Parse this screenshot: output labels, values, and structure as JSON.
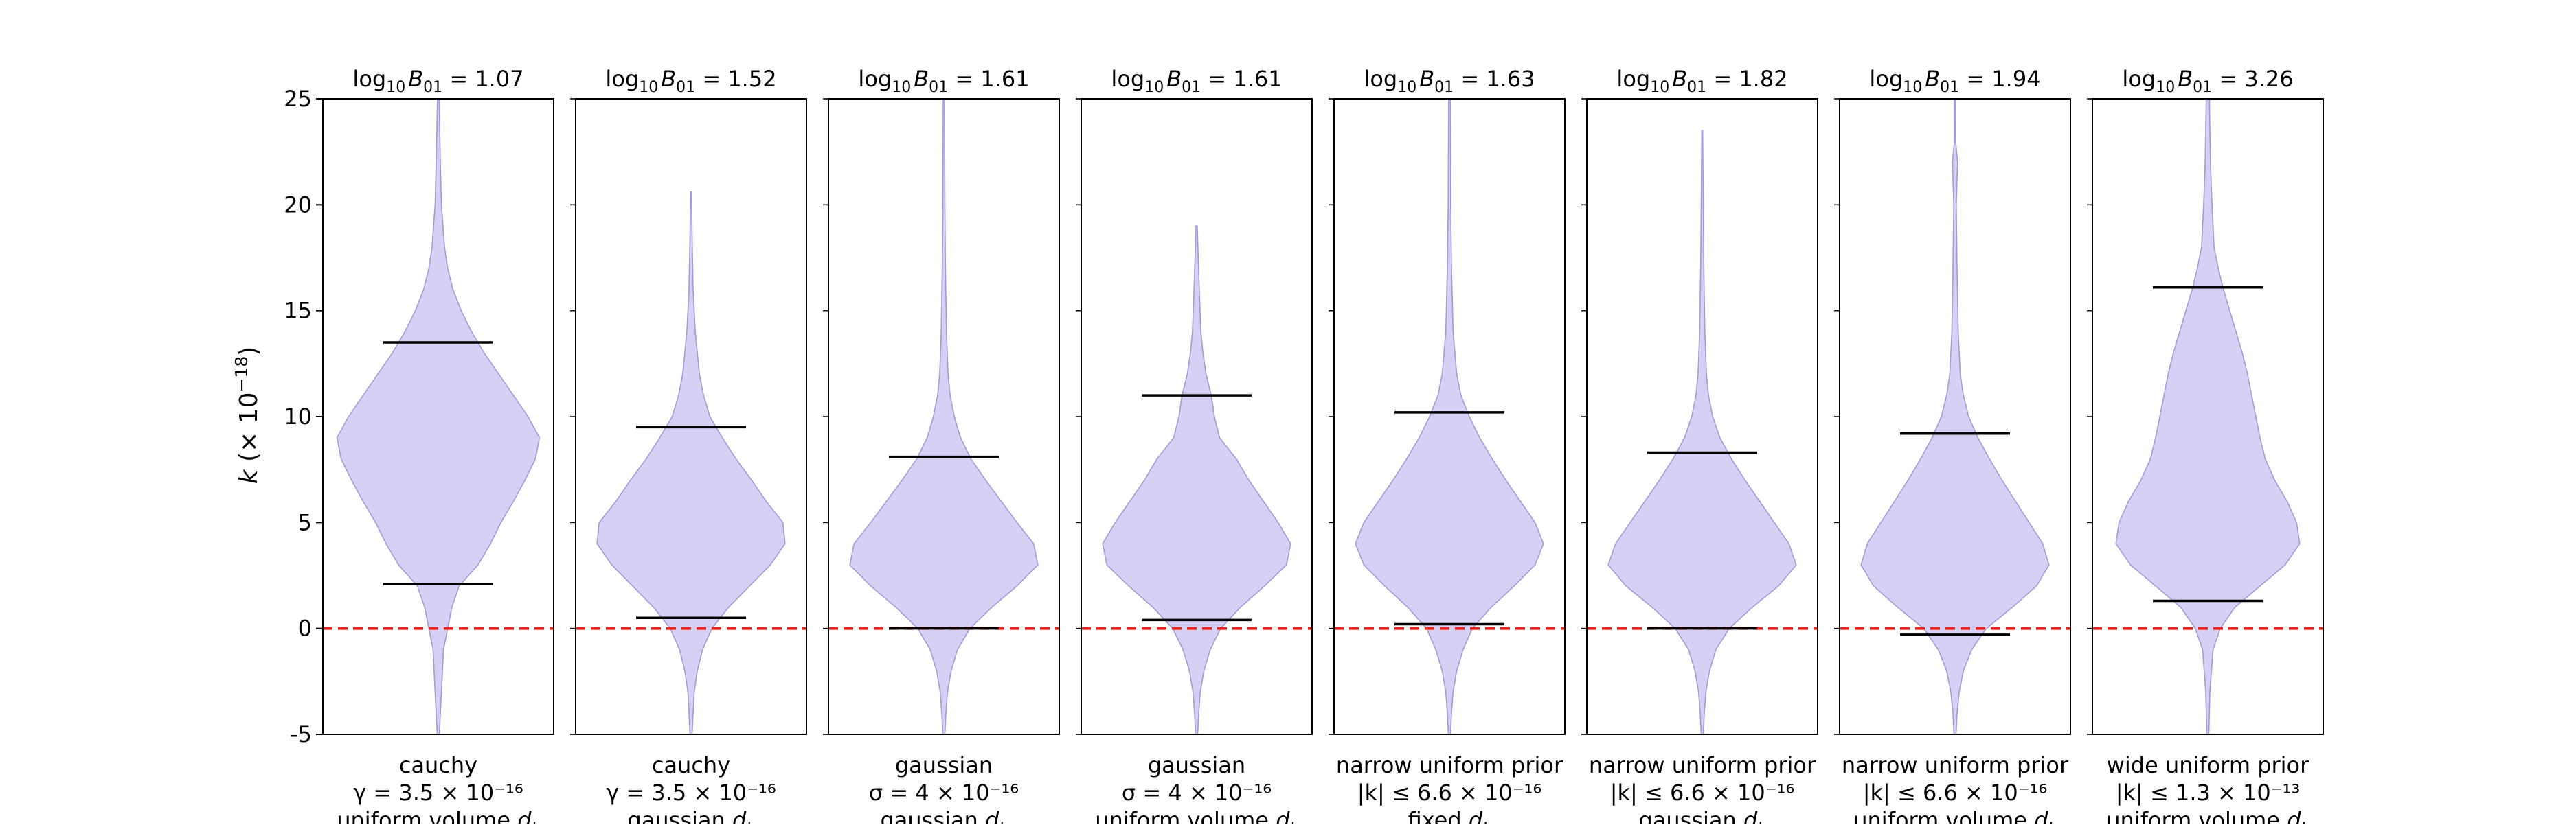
{
  "chart_data": {
    "type": "violin",
    "ylabel": "k (× 10⁻¹⁸)",
    "ylabel_parts": {
      "var": "k",
      "prefix": "(× 10",
      "exp": "−18",
      "suffix": ")"
    },
    "ylim": [
      -5,
      25
    ],
    "yticks": [
      -5,
      0,
      5,
      10,
      15,
      20,
      25
    ],
    "reference_line": {
      "y": 0,
      "color": "#e8221c",
      "style": "dashed"
    },
    "violin_color": "#d6d0f5",
    "violin_edge": "#a49ad8",
    "grid": false,
    "panels": [
      {
        "title": {
          "base": "log",
          "sub": "10",
          "var": "B",
          "varsub": "01",
          "value": " = 1.07"
        },
        "xlabel": [
          "cauchy",
          "γ = 3.5 × 10⁻¹⁶",
          "uniform volume d_L"
        ],
        "lower": 2.1,
        "upper": 13.5,
        "profile": [
          [
            -5,
            0.1
          ],
          [
            -3,
            0.3
          ],
          [
            -1,
            0.5
          ],
          [
            0,
            0.9
          ],
          [
            1,
            1.3
          ],
          [
            2,
            2.0
          ],
          [
            3,
            3.8
          ],
          [
            4,
            5.0
          ],
          [
            5,
            6.0
          ],
          [
            6,
            7.2
          ],
          [
            7,
            8.3
          ],
          [
            8,
            9.3
          ],
          [
            9,
            9.7
          ],
          [
            10,
            8.6
          ],
          [
            11,
            7.2
          ],
          [
            12,
            5.8
          ],
          [
            13,
            4.4
          ],
          [
            14,
            3.2
          ],
          [
            15,
            2.2
          ],
          [
            16,
            1.4
          ],
          [
            17,
            0.9
          ],
          [
            18,
            0.6
          ],
          [
            20,
            0.3
          ],
          [
            22,
            0.2
          ],
          [
            25,
            0.08
          ]
        ]
      },
      {
        "title": {
          "base": "log",
          "sub": "10",
          "var": "B",
          "varsub": "01",
          "value": " = 1.52"
        },
        "xlabel": [
          "cauchy",
          "γ = 3.5 × 10⁻¹⁶",
          "gaussian d_L"
        ],
        "lower": 0.5,
        "upper": 9.5,
        "profile": [
          [
            -5,
            0.1
          ],
          [
            -4,
            0.2
          ],
          [
            -3,
            0.3
          ],
          [
            -2,
            0.6
          ],
          [
            -1,
            1.1
          ],
          [
            0,
            2.0
          ],
          [
            1,
            3.6
          ],
          [
            2,
            5.6
          ],
          [
            3,
            7.6
          ],
          [
            4,
            9.0
          ],
          [
            5,
            8.8
          ],
          [
            6,
            7.2
          ],
          [
            7,
            5.8
          ],
          [
            8,
            4.3
          ],
          [
            9,
            3.0
          ],
          [
            10,
            1.8
          ],
          [
            11,
            1.2
          ],
          [
            12,
            0.8
          ],
          [
            14,
            0.4
          ],
          [
            16,
            0.2
          ],
          [
            18,
            0.12
          ],
          [
            20.6,
            0.04
          ]
        ]
      },
      {
        "title": {
          "base": "log",
          "sub": "10",
          "var": "B",
          "varsub": "01",
          "value": " = 1.61"
        },
        "xlabel": [
          "gaussian",
          "σ = 4 × 10⁻¹⁶",
          "gaussian d_L"
        ],
        "lower": 0.0,
        "upper": 8.1,
        "profile": [
          [
            -5,
            0.1
          ],
          [
            -4,
            0.2
          ],
          [
            -3,
            0.35
          ],
          [
            -2,
            0.7
          ],
          [
            -1,
            1.3
          ],
          [
            0,
            2.5
          ],
          [
            1,
            4.6
          ],
          [
            2,
            7.0
          ],
          [
            3,
            9.0
          ],
          [
            4,
            8.6
          ],
          [
            5,
            7.0
          ],
          [
            6,
            5.5
          ],
          [
            7,
            4.0
          ],
          [
            8,
            2.6
          ],
          [
            9,
            1.6
          ],
          [
            10,
            1.0
          ],
          [
            11,
            0.6
          ],
          [
            12,
            0.4
          ],
          [
            14,
            0.25
          ],
          [
            17,
            0.15
          ],
          [
            20,
            0.1
          ],
          [
            25,
            0.06
          ]
        ]
      },
      {
        "title": {
          "base": "log",
          "sub": "10",
          "var": "B",
          "varsub": "01",
          "value": " = 1.61"
        },
        "xlabel": [
          "gaussian",
          "σ = 4 × 10⁻¹⁶",
          "uniform volume d_L"
        ],
        "lower": 0.4,
        "upper": 11.0,
        "profile": [
          [
            -5,
            0.1
          ],
          [
            -4,
            0.2
          ],
          [
            -3,
            0.35
          ],
          [
            -2,
            0.7
          ],
          [
            -1,
            1.3
          ],
          [
            0,
            2.3
          ],
          [
            1,
            4.2
          ],
          [
            2,
            6.5
          ],
          [
            3,
            8.6
          ],
          [
            4,
            9.0
          ],
          [
            5,
            7.8
          ],
          [
            6,
            6.4
          ],
          [
            7,
            5.0
          ],
          [
            8,
            3.8
          ],
          [
            9,
            2.2
          ],
          [
            10,
            1.7
          ],
          [
            11,
            1.4
          ],
          [
            12,
            0.9
          ],
          [
            13,
            0.6
          ],
          [
            14,
            0.4
          ],
          [
            16,
            0.25
          ],
          [
            18,
            0.12
          ],
          [
            19,
            0.06
          ]
        ]
      },
      {
        "title": {
          "base": "log",
          "sub": "10",
          "var": "B",
          "varsub": "01",
          "value": " = 1.63"
        },
        "xlabel": [
          "narrow uniform prior",
          "|k| ≤ 6.6 × 10⁻¹⁶",
          "fixed d_L"
        ],
        "lower": 0.2,
        "upper": 10.2,
        "profile": [
          [
            -5,
            0.1
          ],
          [
            -4,
            0.2
          ],
          [
            -3,
            0.35
          ],
          [
            -2,
            0.7
          ],
          [
            -1,
            1.3
          ],
          [
            0,
            2.2
          ],
          [
            1,
            4.0
          ],
          [
            2,
            6.2
          ],
          [
            3,
            8.2
          ],
          [
            4,
            9.0
          ],
          [
            5,
            8.2
          ],
          [
            6,
            6.8
          ],
          [
            7,
            5.4
          ],
          [
            8,
            4.1
          ],
          [
            9,
            2.9
          ],
          [
            10,
            1.9
          ],
          [
            11,
            1.1
          ],
          [
            12,
            0.7
          ],
          [
            14,
            0.35
          ],
          [
            17,
            0.2
          ],
          [
            20,
            0.12
          ],
          [
            25,
            0.08
          ]
        ]
      },
      {
        "title": {
          "base": "log",
          "sub": "10",
          "var": "B",
          "varsub": "01",
          "value": " = 1.82"
        },
        "xlabel": [
          "narrow uniform prior",
          "|k| ≤ 6.6 × 10⁻¹⁶",
          "gaussian d_L"
        ],
        "lower": 0.0,
        "upper": 8.3,
        "profile": [
          [
            -5,
            0.1
          ],
          [
            -4,
            0.2
          ],
          [
            -3,
            0.35
          ],
          [
            -2,
            0.7
          ],
          [
            -1,
            1.3
          ],
          [
            0,
            2.6
          ],
          [
            1,
            4.8
          ],
          [
            2,
            7.3
          ],
          [
            3,
            9.0
          ],
          [
            4,
            8.3
          ],
          [
            5,
            6.9
          ],
          [
            6,
            5.5
          ],
          [
            7,
            4.1
          ],
          [
            8,
            2.8
          ],
          [
            9,
            1.7
          ],
          [
            10,
            1.0
          ],
          [
            11,
            0.6
          ],
          [
            12,
            0.4
          ],
          [
            14,
            0.25
          ],
          [
            17,
            0.15
          ],
          [
            20,
            0.1
          ],
          [
            23.5,
            0.04
          ]
        ]
      },
      {
        "title": {
          "base": "log",
          "sub": "10",
          "var": "B",
          "varsub": "01",
          "value": " = 1.94"
        },
        "xlabel": [
          "narrow uniform prior",
          "|k| ≤ 6.6 × 10⁻¹⁶",
          "uniform volume d_L"
        ],
        "lower": -0.3,
        "upper": 9.2,
        "profile": [
          [
            -5,
            0.1
          ],
          [
            -4,
            0.2
          ],
          [
            -3,
            0.4
          ],
          [
            -2,
            0.8
          ],
          [
            -1,
            1.6
          ],
          [
            0,
            3.0
          ],
          [
            1,
            5.5
          ],
          [
            2,
            7.8
          ],
          [
            3,
            9.0
          ],
          [
            4,
            8.4
          ],
          [
            5,
            7.1
          ],
          [
            6,
            5.8
          ],
          [
            7,
            4.5
          ],
          [
            8,
            3.3
          ],
          [
            9,
            2.2
          ],
          [
            10,
            1.3
          ],
          [
            11,
            0.8
          ],
          [
            12,
            0.5
          ],
          [
            14,
            0.3
          ],
          [
            17,
            0.2
          ],
          [
            20,
            0.12
          ],
          [
            22,
            0.25
          ],
          [
            23,
            0.05
          ],
          [
            25,
            0.06
          ]
        ]
      },
      {
        "title": {
          "base": "log",
          "sub": "10",
          "var": "B",
          "varsub": "01",
          "value": " = 3.26"
        },
        "xlabel": [
          "wide uniform prior",
          "|k| ≤ 1.3 × 10⁻¹³",
          "uniform volume d_L"
        ],
        "lower": 1.3,
        "upper": 16.1,
        "profile": [
          [
            -5,
            0.1
          ],
          [
            -3,
            0.2
          ],
          [
            -1,
            0.5
          ],
          [
            0,
            1.2
          ],
          [
            1,
            2.6
          ],
          [
            2,
            5.0
          ],
          [
            3,
            7.4
          ],
          [
            4,
            8.8
          ],
          [
            5,
            8.5
          ],
          [
            6,
            7.6
          ],
          [
            7,
            6.4
          ],
          [
            8,
            5.5
          ],
          [
            9,
            5.0
          ],
          [
            10,
            4.6
          ],
          [
            11,
            4.2
          ],
          [
            12,
            3.8
          ],
          [
            13,
            3.3
          ],
          [
            14,
            2.7
          ],
          [
            15,
            2.1
          ],
          [
            16,
            1.5
          ],
          [
            17,
            1.0
          ],
          [
            18,
            0.6
          ],
          [
            20,
            0.4
          ],
          [
            22,
            0.25
          ],
          [
            25,
            0.15
          ]
        ]
      }
    ]
  }
}
